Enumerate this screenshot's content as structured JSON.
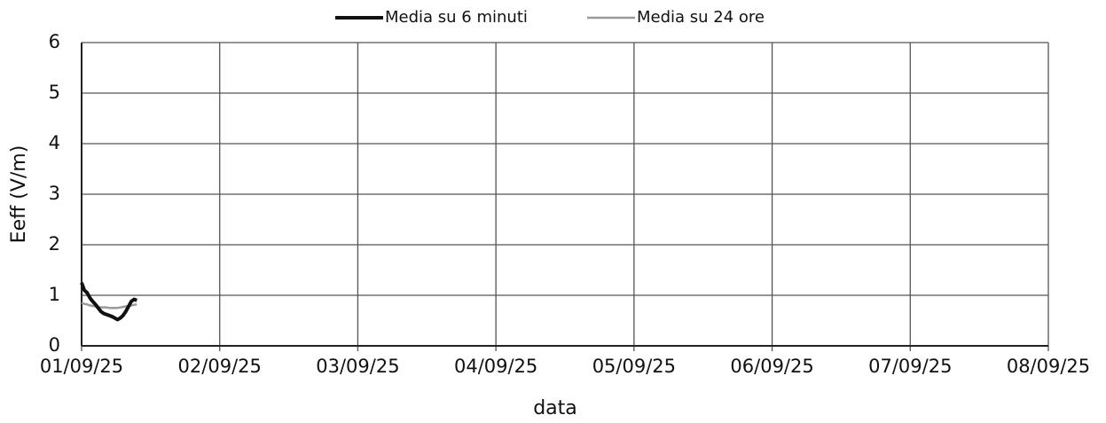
{
  "chart_data": {
    "type": "line",
    "x_label": "data",
    "y_label": "Eeff (V/m)",
    "x": [
      0,
      0.02,
      0.04,
      0.06,
      0.08,
      0.1,
      0.12,
      0.14,
      0.16,
      0.18,
      0.2,
      0.22,
      0.24,
      0.26,
      0.28,
      0.3,
      0.32,
      0.34,
      0.36,
      0.38,
      0.4
    ],
    "series": [
      {
        "name": "Media su 6 minuti",
        "color": "#111111",
        "values": [
          1.25,
          1.1,
          1.05,
          0.95,
          0.88,
          0.82,
          0.75,
          0.68,
          0.64,
          0.62,
          0.6,
          0.58,
          0.55,
          0.52,
          0.55,
          0.6,
          0.68,
          0.78,
          0.88,
          0.92,
          0.9
        ]
      },
      {
        "name": "Media su 24 ore",
        "color": "#9a9a9a",
        "values": [
          0.85,
          0.83,
          0.82,
          0.8,
          0.79,
          0.78,
          0.77,
          0.76,
          0.76,
          0.76,
          0.75,
          0.75,
          0.75,
          0.75,
          0.76,
          0.77,
          0.78,
          0.79,
          0.8,
          0.81,
          0.82
        ]
      }
    ],
    "xlim": [
      0,
      7
    ],
    "xticks": [
      {
        "value": 0,
        "label": "01/09/25"
      },
      {
        "value": 1,
        "label": "02/09/25"
      },
      {
        "value": 2,
        "label": "03/09/25"
      },
      {
        "value": 3,
        "label": "04/09/25"
      },
      {
        "value": 4,
        "label": "05/09/25"
      },
      {
        "value": 5,
        "label": "06/09/25"
      },
      {
        "value": 6,
        "label": "07/09/25"
      },
      {
        "value": 7,
        "label": "08/09/25"
      }
    ],
    "ylim": [
      0,
      6
    ],
    "yticks": [
      0,
      1,
      2,
      3,
      4,
      5,
      6
    ],
    "grid": true,
    "legend": "top"
  }
}
